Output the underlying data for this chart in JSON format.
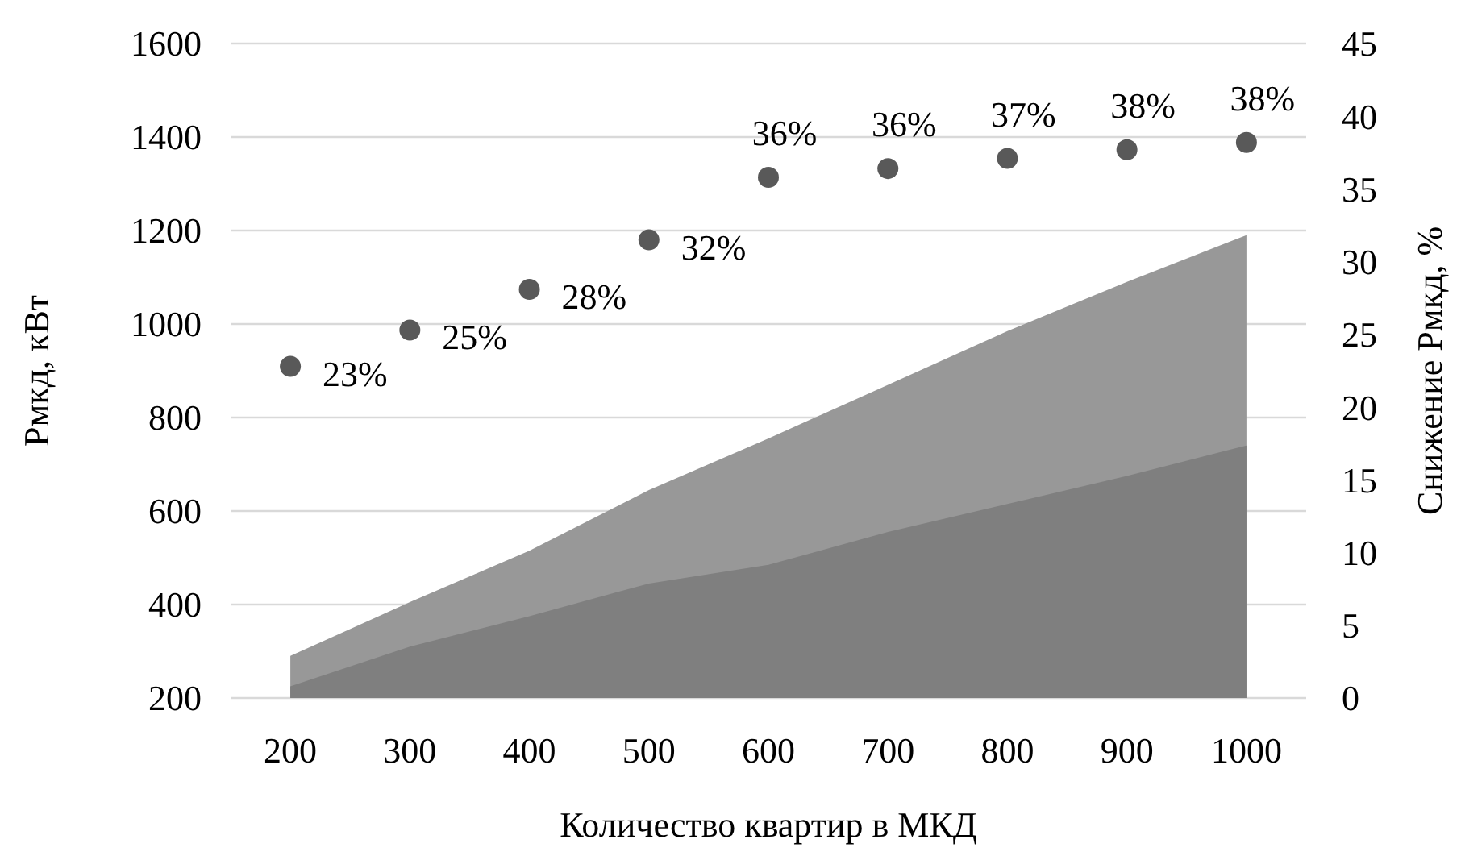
{
  "chart_data": {
    "type": "area",
    "xlabel": "Количество квартир в МКД",
    "ylabel": "Рмкд, кВт",
    "y2label": "Снижение Рмкд, %",
    "categories": [
      "200",
      "300",
      "400",
      "500",
      "600",
      "700",
      "800",
      "900",
      "1000"
    ],
    "series": [
      {
        "color": "#989898",
        "values": [
          290,
          405,
          515,
          645,
          755,
          870,
          985,
          1090,
          1190
        ]
      },
      {
        "color": "#7f7f7f",
        "values": [
          225,
          310,
          375,
          445,
          485,
          555,
          615,
          675,
          740
        ]
      },
      {
        "type": "scatter",
        "marker": "circle",
        "axis": "y2",
        "color": "#595959",
        "values": [
          22.8,
          25.3,
          28.1,
          31.5,
          35.8,
          36.4,
          37.1,
          37.7,
          38.2
        ],
        "value_labels": [
          "23%",
          "25%",
          "28%",
          "32%",
          "36%",
          "36%",
          "37%",
          "38%",
          "38%"
        ]
      }
    ],
    "ylim": [
      200,
      1600
    ],
    "yticks": [
      200,
      400,
      600,
      800,
      1000,
      1200,
      1400,
      1600
    ],
    "y2lim": [
      0,
      45
    ],
    "y2ticks": [
      0,
      5,
      10,
      15,
      20,
      25,
      30,
      35,
      40,
      45
    ],
    "grid": "y"
  }
}
